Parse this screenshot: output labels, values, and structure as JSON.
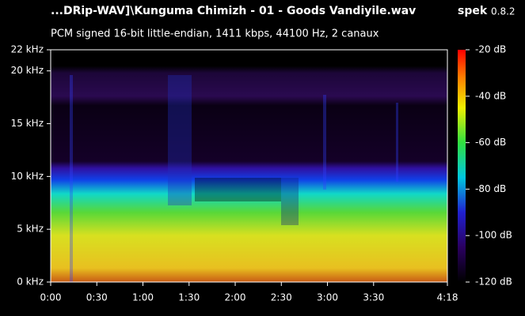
{
  "chart_data": {
    "type": "spectrogram",
    "title": "...DRip-WAV]\\Kunguma Chimizh - 01 - Goods Vandiyile.wav",
    "subtitle": "PCM signed 16-bit little-endian, 1411 kbps, 44100 Hz, 2 canaux",
    "app_name": "spek",
    "app_version": "0.8.2",
    "xlim": [
      0,
      258
    ],
    "xticks": [
      {
        "value": 0,
        "label": "0:00"
      },
      {
        "value": 30,
        "label": "0:30"
      },
      {
        "value": 60,
        "label": "1:00"
      },
      {
        "value": 90,
        "label": "1:30"
      },
      {
        "value": 120,
        "label": "2:00"
      },
      {
        "value": 150,
        "label": "2:30"
      },
      {
        "value": 180,
        "label": "3:00"
      },
      {
        "value": 210,
        "label": "3:30"
      },
      {
        "value": 258,
        "label": "4:18"
      }
    ],
    "ylim": [
      0,
      22
    ],
    "yticks": [
      {
        "value": 0,
        "label": "0 kHz"
      },
      {
        "value": 5,
        "label": "5 kHz"
      },
      {
        "value": 10,
        "label": "10 kHz"
      },
      {
        "value": 15,
        "label": "15 kHz"
      },
      {
        "value": 20,
        "label": "20 kHz"
      },
      {
        "value": 22,
        "label": "22 kHz"
      }
    ],
    "colorbar_lim": [
      -120,
      -20
    ],
    "colorbar_ticks": [
      {
        "value": -20,
        "label": "-20 dB"
      },
      {
        "value": -40,
        "label": "-40 dB"
      },
      {
        "value": -60,
        "label": "-60 dB"
      },
      {
        "value": -80,
        "label": "-80 dB"
      },
      {
        "value": -100,
        "label": "-100 dB"
      },
      {
        "value": -120,
        "label": "-120 dB"
      }
    ]
  }
}
